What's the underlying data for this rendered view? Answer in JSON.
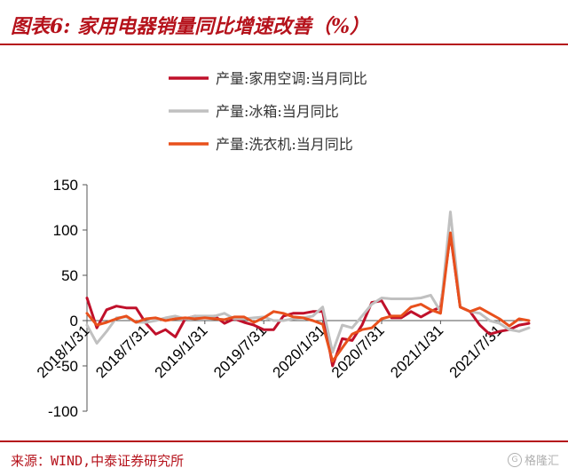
{
  "title": "图表6: 家用电器销量同比增速改善（%）",
  "source": "来源：WIND,中泰证券研究所",
  "watermark": "格隆汇",
  "chart_data": {
    "type": "line",
    "title": "图表6: 家用电器销量同比增速改善（%）",
    "xlabel": "",
    "ylabel": "",
    "ylim": [
      -100,
      150
    ],
    "y_ticks": [
      150,
      100,
      50,
      0,
      -50,
      -100
    ],
    "x_tick_labels": [
      "2018/1/31",
      "2018/7/31",
      "2019/1/31",
      "2019/7/31",
      "2020/1/31",
      "2020/7/31",
      "2021/1/31",
      "2021/7/31"
    ],
    "x": [
      "2018/1",
      "2018/2",
      "2018/3",
      "2018/4",
      "2018/5",
      "2018/6",
      "2018/7",
      "2018/8",
      "2018/9",
      "2018/10",
      "2018/11",
      "2018/12",
      "2019/1",
      "2019/2",
      "2019/3",
      "2019/4",
      "2019/5",
      "2019/6",
      "2019/7",
      "2019/8",
      "2019/9",
      "2019/10",
      "2019/11",
      "2019/12",
      "2020/1",
      "2020/2",
      "2020/3",
      "2020/4",
      "2020/5",
      "2020/6",
      "2020/7",
      "2020/8",
      "2020/9",
      "2020/10",
      "2020/11",
      "2020/12",
      "2021/1",
      "2021/2",
      "2021/3",
      "2021/4",
      "2021/5",
      "2021/6",
      "2021/7",
      "2021/8",
      "2021/9",
      "2021/10"
    ],
    "legend_position": "top",
    "grid": false,
    "series": [
      {
        "name": "产量:家用空调:当月同比",
        "color": "#c0102a",
        "values": [
          25,
          -8,
          12,
          16,
          14,
          14,
          -3,
          -15,
          -10,
          -18,
          2,
          5,
          4,
          5,
          -3,
          2,
          -2,
          -5,
          -10,
          -10,
          5,
          8,
          8,
          10,
          10,
          -50,
          -20,
          -22,
          -5,
          20,
          22,
          3,
          3,
          10,
          4,
          10,
          15,
          95,
          15,
          10,
          -5,
          -15,
          -12,
          -10,
          -5,
          -3
        ]
      },
      {
        "name": "产量:冰箱:当月同比",
        "color": "#c0c0c0",
        "values": [
          -5,
          -25,
          -12,
          3,
          4,
          -2,
          -2,
          0,
          3,
          5,
          2,
          5,
          5,
          5,
          8,
          2,
          2,
          3,
          4,
          0,
          0,
          2,
          3,
          5,
          15,
          -35,
          -5,
          -8,
          5,
          18,
          25,
          24,
          24,
          24,
          25,
          28,
          10,
          120,
          15,
          10,
          8,
          0,
          -3,
          -10,
          -12,
          -8
        ]
      },
      {
        "name": "产量:洗衣机:当月同比",
        "color": "#e8501c",
        "values": [
          8,
          -5,
          -2,
          2,
          5,
          -2,
          2,
          3,
          0,
          2,
          3,
          2,
          3,
          2,
          1,
          4,
          4,
          -2,
          3,
          10,
          8,
          4,
          3,
          0,
          -4,
          -45,
          -30,
          -15,
          -10,
          -8,
          2,
          5,
          5,
          15,
          18,
          12,
          8,
          97,
          15,
          10,
          14,
          8,
          2,
          -6,
          2,
          0
        ]
      }
    ]
  }
}
